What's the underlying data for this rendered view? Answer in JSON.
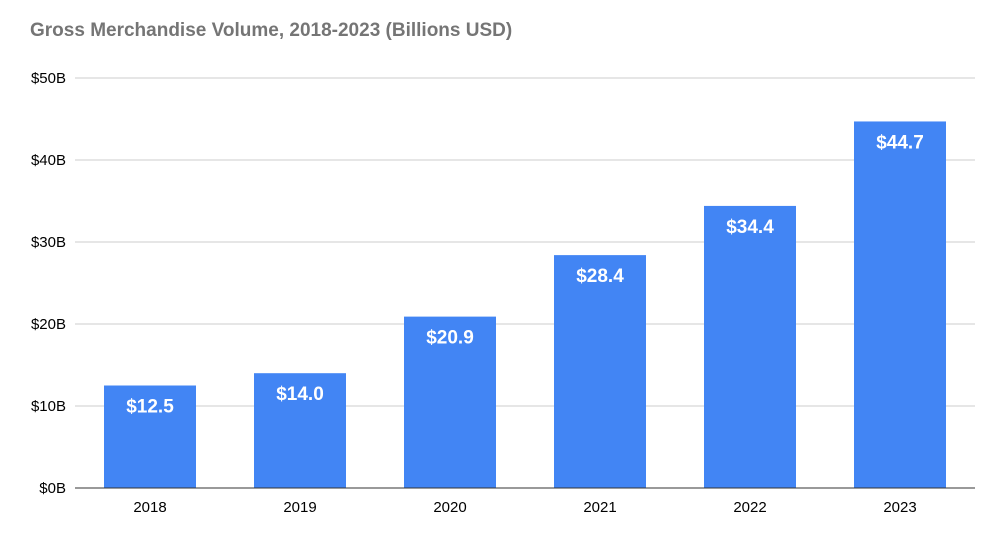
{
  "chart_data": {
    "type": "bar",
    "title": "Gross Merchandise Volume, 2018-2023 (Billions USD)",
    "xlabel": "",
    "ylabel": "",
    "categories": [
      "2018",
      "2019",
      "2020",
      "2021",
      "2022",
      "2023"
    ],
    "values": [
      12.5,
      14.0,
      20.9,
      28.4,
      34.4,
      44.7
    ],
    "data_labels": [
      "$12.5",
      "$14.0",
      "$20.9",
      "$28.4",
      "$34.4",
      "$44.7"
    ],
    "ylim": [
      0,
      50
    ],
    "yticks": [
      0,
      10,
      20,
      30,
      40,
      50
    ],
    "ytick_labels": [
      "$0B",
      "$10B",
      "$20B",
      "$30B",
      "$40B",
      "$50B"
    ],
    "grid": true,
    "legend": "none",
    "colors": {
      "bar": "#4285f4",
      "grid": "#cccccc",
      "axis": "#333333",
      "title": "#757575",
      "data_label": "#ffffff"
    }
  }
}
